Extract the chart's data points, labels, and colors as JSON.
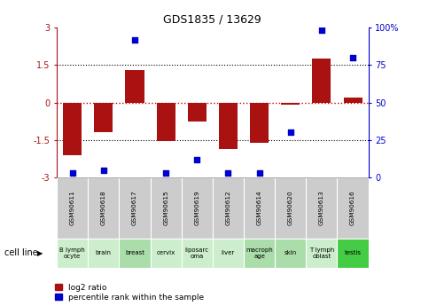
{
  "title": "GDS1835 / 13629",
  "samples": [
    "GSM90611",
    "GSM90618",
    "GSM90617",
    "GSM90615",
    "GSM90619",
    "GSM90612",
    "GSM90614",
    "GSM90620",
    "GSM90613",
    "GSM90616"
  ],
  "cell_lines": [
    "B lymph\nocyte",
    "brain",
    "breast",
    "cervix",
    "liposarc\noma",
    "liver",
    "macroph\nage",
    "skin",
    "T lymph\noblast",
    "testis"
  ],
  "log2_ratio": [
    -2.1,
    -1.2,
    1.3,
    -1.55,
    -0.75,
    -1.85,
    -1.6,
    -0.1,
    1.75,
    0.2
  ],
  "percentile_rank": [
    3,
    5,
    92,
    3,
    12,
    3,
    3,
    30,
    98,
    80
  ],
  "bar_color": "#aa1111",
  "dot_color": "#0000cc",
  "ylim": [
    -3,
    3
  ],
  "yticks_left": [
    -3,
    -1.5,
    0,
    1.5,
    3
  ],
  "ytick_labels_left": [
    "-3",
    "-1.5",
    "0",
    "1.5",
    "3"
  ],
  "yticks_right": [
    0,
    25,
    50,
    75,
    100
  ],
  "ytick_labels_right": [
    "0",
    "25",
    "50",
    "75",
    "100%"
  ],
  "hline_zero_color": "#cc0000",
  "hline_dotted_color": "#000000",
  "sample_bg": "#cccccc",
  "cell_line_colors": [
    "#cceecc",
    "#cceecc",
    "#aaddaa",
    "#cceecc",
    "#cceecc",
    "#cceecc",
    "#aaddaa",
    "#aaddaa",
    "#cceecc",
    "#44cc44"
  ],
  "legend_red_label": "log2 ratio",
  "legend_blue_label": "percentile rank within the sample",
  "cell_line_label": "cell line"
}
